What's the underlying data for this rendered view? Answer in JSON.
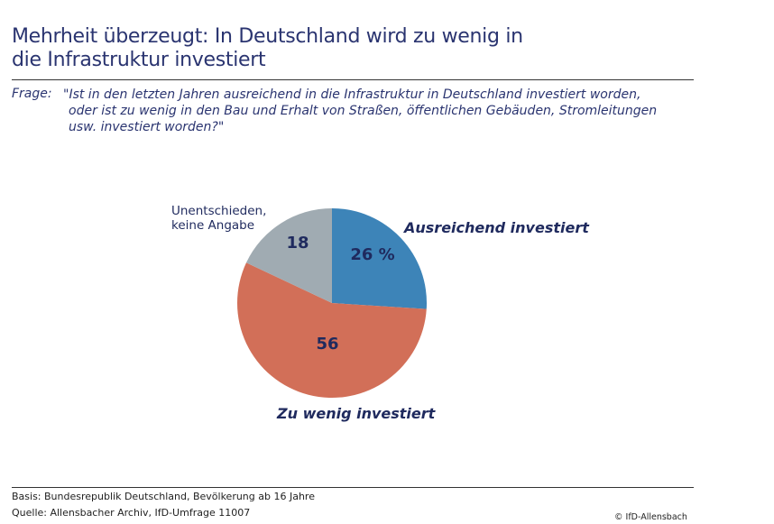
{
  "title": [
    "Mehrheit überzeugt: In Deutschland wird zu wenig in",
    "die Infrastruktur investiert"
  ],
  "question_label": "Frage:",
  "question_lines": [
    "\"Ist in den letzten Jahren ausreichend in die Infrastruktur in Deutschland investiert worden,",
    "oder ist zu wenig in den Bau und Erhalt von Straßen, öffentlichen Gebäuden, Stromleitungen",
    "usw. investiert worden?\""
  ],
  "chart_data": {
    "type": "pie",
    "unit": "%",
    "start": "12 o'clock, clockwise",
    "slices": [
      {
        "name": "Ausreichend investiert",
        "value": 26,
        "label": "26 %",
        "color": "#3d84b8"
      },
      {
        "name": "Zu wenig investiert",
        "value": 56,
        "label": "56",
        "color": "#d26f58"
      },
      {
        "name": "Unentschieden, keine Angabe",
        "value": 18,
        "label": "18",
        "color": "#a0abb2"
      }
    ]
  },
  "footer": {
    "basis": "Basis: Bundesrepublik Deutschland, Bevölkerung ab 16 Jahre",
    "source": "Quelle: Allensbacher Archiv, IfD-Umfrage 11007",
    "copyright": "© IfD-Allensbach"
  }
}
